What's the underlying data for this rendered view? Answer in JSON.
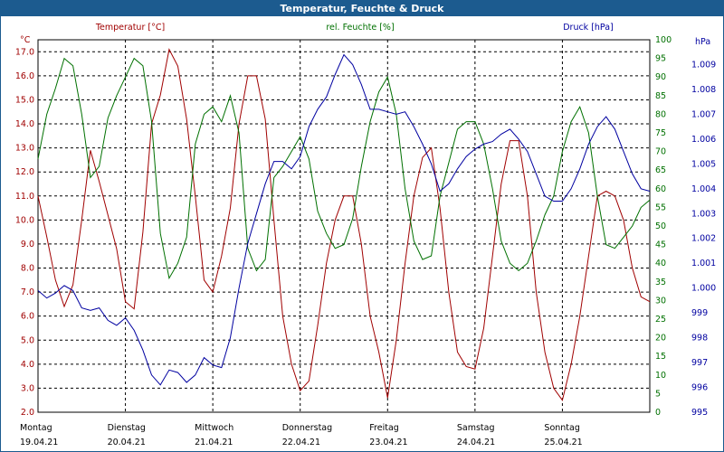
{
  "window": {
    "title": "Temperatur, Feuchte & Druck"
  },
  "chart_data": {
    "type": "line",
    "title": "Temperatur, Feuchte & Druck",
    "grid": true,
    "colors": {
      "temperature": "#a00000",
      "humidity": "#007000",
      "pressure": "#0000a0",
      "titlebar": "#1c5b8f"
    },
    "x_labels": [
      {
        "day": "Montag",
        "date": "19.04.21"
      },
      {
        "day": "Dienstag",
        "date": "20.04.21"
      },
      {
        "day": "Mittwoch",
        "date": "21.04.21"
      },
      {
        "day": "Donnerstag",
        "date": "22.04.21"
      },
      {
        "day": "Freitag",
        "date": "23.04.21"
      },
      {
        "day": "Samstag",
        "date": "24.04.21"
      },
      {
        "day": "Sonntag",
        "date": "25.04.21"
      }
    ],
    "x_range_days": [
      0,
      7
    ],
    "axes": {
      "temperature": {
        "unit": "°C",
        "label": "Temperatur [°C]",
        "range": [
          2.0,
          17.5
        ],
        "ticks": [
          "17.0",
          "16.0",
          "15.0",
          "14.0",
          "13.0",
          "12.0",
          "11.0",
          "10.0",
          "9.0",
          "8.0",
          "7.0",
          "6.0",
          "5.0",
          "4.0",
          "3.0",
          "2.0"
        ]
      },
      "humidity": {
        "unit": "%",
        "label": "rel. Feuchte [%]",
        "range": [
          0,
          100
        ],
        "ticks": [
          "100",
          "95",
          "90",
          "85",
          "80",
          "75",
          "70",
          "65",
          "60",
          "55",
          "50",
          "45",
          "40",
          "35",
          "30",
          "25",
          "20",
          "15",
          "10",
          "5",
          "0"
        ]
      },
      "pressure": {
        "unit": "hPa",
        "label": "Druck [hPa]",
        "range": [
          995,
          1010
        ],
        "ticks": [
          "1.009",
          "1.008",
          "1.007",
          "1.006",
          "1.005",
          "1.004",
          "1.003",
          "1.002",
          "1.001",
          "1.000",
          "999",
          "998",
          "997",
          "996",
          "995"
        ]
      }
    },
    "series": [
      {
        "name": "Temperatur [°C]",
        "axis": "temperature",
        "x": [
          0,
          0.1,
          0.2,
          0.3,
          0.4,
          0.5,
          0.6,
          0.7,
          0.8,
          0.9,
          1.0,
          1.1,
          1.2,
          1.3,
          1.4,
          1.5,
          1.6,
          1.7,
          1.8,
          1.9,
          2.0,
          2.1,
          2.2,
          2.3,
          2.4,
          2.5,
          2.6,
          2.7,
          2.8,
          2.9,
          3.0,
          3.1,
          3.2,
          3.3,
          3.4,
          3.5,
          3.6,
          3.7,
          3.8,
          3.9,
          4.0,
          4.1,
          4.2,
          4.3,
          4.4,
          4.5,
          4.6,
          4.7,
          4.8,
          4.9,
          5.0,
          5.1,
          5.2,
          5.3,
          5.4,
          5.5,
          5.6,
          5.7,
          5.8,
          5.9,
          6.0,
          6.1,
          6.2,
          6.3,
          6.4,
          6.5,
          6.6,
          6.7,
          6.8,
          6.9,
          7.0
        ],
        "values": [
          11.0,
          9.3,
          7.5,
          6.4,
          7.3,
          10.0,
          12.9,
          11.6,
          10.2,
          8.8,
          6.6,
          6.3,
          9.5,
          14.0,
          15.2,
          17.1,
          16.4,
          14.2,
          11.0,
          7.5,
          7.0,
          8.5,
          10.5,
          14.0,
          16.0,
          16.0,
          14.2,
          10.0,
          6.0,
          4.0,
          2.9,
          3.3,
          5.6,
          8.2,
          10.0,
          11.0,
          11.0,
          9.0,
          6.0,
          4.5,
          2.6,
          5.0,
          8.2,
          11.0,
          12.6,
          13.0,
          10.5,
          7.0,
          4.5,
          3.9,
          3.8,
          5.5,
          8.5,
          11.5,
          13.3,
          13.3,
          11.0,
          7.0,
          4.5,
          3.0,
          2.5,
          4.0,
          6.0,
          8.5,
          11.0,
          11.2,
          11.0,
          10.0,
          8.0,
          6.8,
          6.6
        ]
      },
      {
        "name": "rel. Feuchte [%]",
        "axis": "humidity",
        "x": [
          0,
          0.1,
          0.2,
          0.3,
          0.4,
          0.5,
          0.6,
          0.7,
          0.8,
          0.9,
          1.0,
          1.1,
          1.2,
          1.3,
          1.4,
          1.5,
          1.6,
          1.7,
          1.8,
          1.9,
          2.0,
          2.1,
          2.2,
          2.3,
          2.4,
          2.5,
          2.6,
          2.7,
          2.8,
          2.9,
          3.0,
          3.1,
          3.2,
          3.3,
          3.4,
          3.5,
          3.6,
          3.7,
          3.8,
          3.9,
          4.0,
          4.1,
          4.2,
          4.3,
          4.4,
          4.5,
          4.6,
          4.7,
          4.8,
          4.9,
          5.0,
          5.1,
          5.2,
          5.3,
          5.4,
          5.5,
          5.6,
          5.7,
          5.8,
          5.9,
          6.0,
          6.1,
          6.2,
          6.3,
          6.4,
          6.5,
          6.6,
          6.7,
          6.8,
          6.9,
          7.0
        ],
        "values": [
          68,
          80,
          87,
          95,
          93,
          80,
          63,
          66,
          79,
          85,
          90,
          95,
          93,
          78,
          48,
          36,
          40,
          47,
          72,
          80,
          82,
          78,
          85,
          75,
          44,
          38,
          41,
          63,
          66,
          70,
          74,
          68,
          54,
          48,
          44,
          45,
          52,
          66,
          78,
          86,
          90,
          80,
          60,
          46,
          41,
          42,
          58,
          67,
          76,
          78,
          78,
          72,
          60,
          46,
          40,
          38,
          40,
          46,
          53,
          58,
          70,
          78,
          82,
          75,
          58,
          45,
          44,
          47,
          50,
          55,
          57
        ]
      },
      {
        "name": "Druck [hPa]",
        "axis": "pressure",
        "x": [
          0,
          0.1,
          0.2,
          0.3,
          0.4,
          0.5,
          0.6,
          0.7,
          0.8,
          0.9,
          1.0,
          1.1,
          1.2,
          1.3,
          1.4,
          1.5,
          1.6,
          1.7,
          1.8,
          1.9,
          2.0,
          2.1,
          2.2,
          2.3,
          2.4,
          2.5,
          2.6,
          2.7,
          2.8,
          2.9,
          3.0,
          3.1,
          3.2,
          3.3,
          3.4,
          3.5,
          3.6,
          3.7,
          3.8,
          3.9,
          4.0,
          4.1,
          4.2,
          4.3,
          4.4,
          4.5,
          4.6,
          4.7,
          4.8,
          4.9,
          5.0,
          5.1,
          5.2,
          5.3,
          5.4,
          5.5,
          5.6,
          5.7,
          5.8,
          5.9,
          6.0,
          6.1,
          6.2,
          6.3,
          6.4,
          6.5,
          6.6,
          6.7,
          6.8,
          6.9,
          7.0
        ],
        "values": [
          999.9,
          999.6,
          999.8,
          1000.1,
          999.9,
          999.2,
          999.1,
          999.2,
          998.7,
          998.5,
          998.8,
          998.3,
          997.5,
          996.5,
          996.1,
          996.7,
          996.6,
          996.2,
          996.5,
          997.2,
          996.9,
          996.8,
          998.0,
          1000.0,
          1001.8,
          1003.0,
          1004.2,
          1005.1,
          1005.1,
          1004.8,
          1005.3,
          1006.5,
          1007.2,
          1007.7,
          1008.6,
          1009.4,
          1009.0,
          1008.2,
          1007.2,
          1007.2,
          1007.1,
          1007.0,
          1007.1,
          1006.5,
          1005.8,
          1005.0,
          1003.9,
          1004.2,
          1004.8,
          1005.3,
          1005.6,
          1005.8,
          1005.9,
          1006.2,
          1006.4,
          1006.0,
          1005.5,
          1004.6,
          1003.7,
          1003.5,
          1003.5,
          1004.0,
          1004.8,
          1005.8,
          1006.5,
          1006.9,
          1006.4,
          1005.5,
          1004.6,
          1004.0,
          1003.9
        ]
      }
    ]
  }
}
